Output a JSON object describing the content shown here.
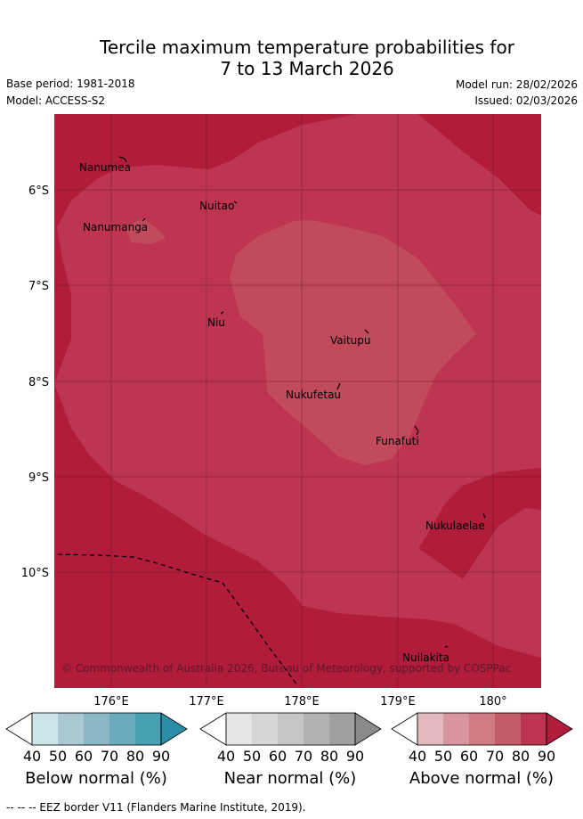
{
  "title": {
    "line1": "Tercile maximum temperature probabilities for",
    "line2": "7 to 13 March 2026"
  },
  "meta": {
    "base_period": "Base period: 1981-2018",
    "model": "Model: ACCESS-S2",
    "model_run": "Model run: 28/02/2026",
    "issued": "Issued: 02/03/2026"
  },
  "map": {
    "lon_labels": [
      "176°E",
      "177°E",
      "178°E",
      "179°E",
      "180°"
    ],
    "lat_labels": [
      "6°S",
      "7°S",
      "8°S",
      "9°S",
      "10°S"
    ],
    "places": [
      {
        "name": "Nanumea"
      },
      {
        "name": "Nuitao"
      },
      {
        "name": "Nanumanga"
      },
      {
        "name": "Niu"
      },
      {
        "name": "Vaitupu"
      },
      {
        "name": "Nukufetau"
      },
      {
        "name": "Funafuti"
      },
      {
        "name": "Nukulaelae"
      },
      {
        "name": "Nuilakita"
      }
    ],
    "credit": "© Commonwealth of Australia 2026, Bureau of Meteorology, supported by COSPPac",
    "colors": {
      "above_80_90": "#b01c3a",
      "above_70_80": "#bd3550",
      "above_60_70": "#c14b5d"
    }
  },
  "colorbars": [
    {
      "label": "Below normal (%)",
      "ticks": [
        "40",
        "50",
        "60",
        "70",
        "80",
        "90"
      ],
      "colors": [
        "#cde4ea",
        "#a9c8cf",
        "#8bb8c5",
        "#6aacbd",
        "#48a0b3",
        "#2b8da5"
      ]
    },
    {
      "label": "Near normal (%)",
      "ticks": [
        "40",
        "50",
        "60",
        "70",
        "80",
        "90"
      ],
      "colors": [
        "#e5e5e5",
        "#d6d6d6",
        "#c6c6c6",
        "#b2b2b2",
        "#a0a0a0",
        "#8a8a8a"
      ]
    },
    {
      "label": "Above normal (%)",
      "ticks": [
        "40",
        "50",
        "60",
        "70",
        "80",
        "90"
      ],
      "colors": [
        "#e3b9bf",
        "#d9959e",
        "#d07a83",
        "#c55b68",
        "#bb3450",
        "#b01c3a"
      ]
    }
  ],
  "footer": "--  --  -- EEZ border V11 (Flanders Marine Institute, 2019)."
}
